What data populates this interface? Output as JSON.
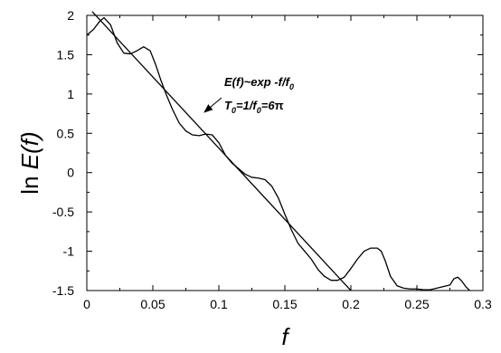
{
  "chart_data": {
    "type": "line",
    "xlabel": {
      "main": "f"
    },
    "ylabel": {
      "pre": "ln ",
      "main": "E(",
      "italic": "f",
      "post": ")"
    },
    "xlim": [
      0,
      0.3
    ],
    "ylim": [
      -1.5,
      2
    ],
    "xticks": [
      "0",
      "0.05",
      "0.1",
      "0.15",
      "0.2",
      "0.25",
      "0.3"
    ],
    "yticks": [
      "-1.5",
      "-1",
      "-0.5",
      "0",
      "0.5",
      "1",
      "1.5",
      "2"
    ],
    "grid": false,
    "series": [
      {
        "x": [
          0,
          0.005,
          0.01,
          0.013,
          0.018,
          0.023,
          0.028,
          0.033,
          0.038,
          0.043,
          0.048,
          0.052,
          0.056,
          0.06,
          0.065,
          0.07,
          0.075,
          0.08,
          0.085,
          0.09,
          0.095,
          0.1,
          0.105,
          0.11,
          0.115,
          0.12,
          0.125,
          0.13,
          0.135,
          0.14,
          0.145,
          0.15,
          0.155,
          0.16,
          0.165,
          0.17,
          0.175,
          0.18,
          0.185,
          0.19,
          0.195,
          0.2,
          0.205,
          0.21,
          0.215,
          0.22,
          0.223,
          0.226,
          0.23,
          0.235,
          0.24,
          0.245,
          0.25,
          0.255,
          0.26,
          0.265,
          0.27,
          0.275,
          0.278,
          0.281,
          0.284,
          0.287,
          0.29
        ],
        "y": [
          1.75,
          1.82,
          1.93,
          1.97,
          1.88,
          1.65,
          1.52,
          1.51,
          1.55,
          1.6,
          1.55,
          1.38,
          1.18,
          1.0,
          0.8,
          0.63,
          0.53,
          0.48,
          0.47,
          0.49,
          0.48,
          0.38,
          0.22,
          0.12,
          0.05,
          -0.02,
          -0.06,
          -0.07,
          -0.09,
          -0.17,
          -0.32,
          -0.53,
          -0.73,
          -0.9,
          -1.0,
          -1.1,
          -1.23,
          -1.32,
          -1.37,
          -1.37,
          -1.33,
          -1.22,
          -1.1,
          -1.0,
          -0.96,
          -0.96,
          -1.0,
          -1.12,
          -1.32,
          -1.44,
          -1.47,
          -1.48,
          -1.48,
          -1.49,
          -1.49,
          -1.47,
          -1.45,
          -1.43,
          -1.35,
          -1.33,
          -1.38,
          -1.45,
          -1.5
        ]
      },
      {
        "x": [
          0.004,
          0.2
        ],
        "y": [
          2.05,
          -1.5
        ]
      }
    ],
    "annotations": {
      "line1": {
        "prefix_italic": "E",
        "p1": "(",
        "f_italic": "f",
        "p2": ")~exp -",
        "f2_italic": "f",
        "slash": "/",
        "f0_italic": "f",
        "f0_sub": "0"
      },
      "line2": {
        "T_italic": "T",
        "T_sub": "0",
        "eq1": "=1/",
        "f_italic": "f",
        "f_sub": "0",
        "eq2": "=6",
        "pi": "π"
      }
    }
  }
}
